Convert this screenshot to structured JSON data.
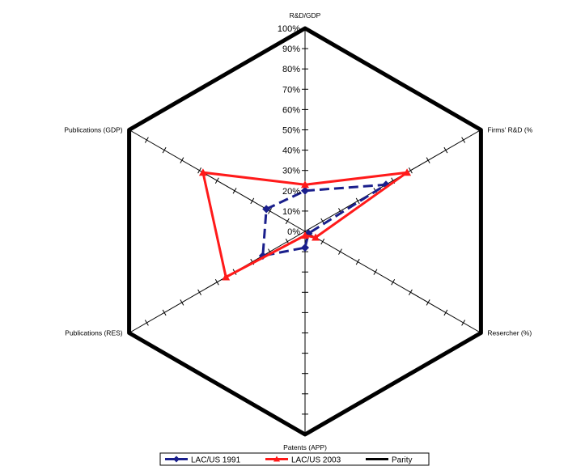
{
  "chart_data": {
    "type": "radar",
    "axes": [
      "R&D/GDP",
      "Firms' R&D (%",
      "Resercher (%)",
      "Patents (APP)",
      "Publications (RES)",
      "Publications (GDP)"
    ],
    "rlim": [
      0,
      100
    ],
    "tick_values": [
      0,
      10,
      20,
      30,
      40,
      50,
      60,
      70,
      80,
      90,
      100
    ],
    "tick_labels": [
      "0%",
      "10%",
      "20%",
      "30%",
      "40%",
      "50%",
      "60%",
      "70%",
      "80%",
      "90%",
      "100%"
    ],
    "series": [
      {
        "name": "LAC/US 1991",
        "values": [
          20,
          46,
          2,
          8,
          24,
          22
        ],
        "color": "#1a1f8c",
        "style": "dashed",
        "marker": "diamond"
      },
      {
        "name": "LAC/US 2003",
        "values": [
          23,
          58,
          6,
          2,
          45,
          58
        ],
        "color": "#ff1a1a",
        "style": "solid",
        "marker": "triangle"
      },
      {
        "name": "Parity",
        "values": [
          100,
          100,
          100,
          100,
          100,
          100
        ],
        "color": "#000000",
        "style": "solid",
        "marker": "none"
      }
    ],
    "legend": "bottom"
  }
}
